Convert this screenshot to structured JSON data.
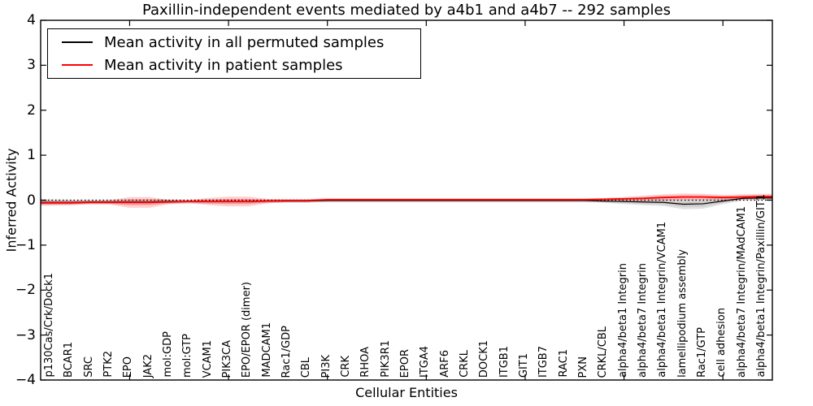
{
  "chart_data": {
    "type": "line",
    "title": "Paxillin-independent events mediated by a4b1 and a4b7 -- 292 samples",
    "xlabel": "Cellular Entities",
    "ylabel": "Inferred Activity",
    "ylim": [
      -4,
      4
    ],
    "grid": false,
    "zero_reference_line": {
      "value": 0,
      "style": "dotted",
      "color": "#000000"
    },
    "y_ticks": [
      4,
      3,
      2,
      1,
      0,
      -1,
      -2,
      -3,
      -4
    ],
    "y_tick_labels": [
      "4",
      "3",
      "2",
      "1",
      "0",
      "−1",
      "−2",
      "−3",
      "−4"
    ],
    "x_major_tick_indices": [
      4,
      9,
      14,
      19,
      24,
      29,
      34
    ],
    "legend_position": "upper left",
    "categories": [
      "p130Cas/Crk/Dock1",
      "BCAR1",
      "SRC",
      "PTK2",
      "EPO",
      "JAK2",
      "mol:GDP",
      "mol:GTP",
      "VCAM1",
      "PIK3CA",
      "EPO/EPOR (dimer)",
      "MADCAM1",
      "Rac1/GDP",
      "CBL",
      "PI3K",
      "CRK",
      "RHOA",
      "PIK3R1",
      "EPOR",
      "ITGA4",
      "ARF6",
      "CRKL",
      "DOCK1",
      "ITGB1",
      "GIT1",
      "ITGB7",
      "RAC1",
      "PXN",
      "CRKL/CBL",
      "alpha4/beta1 Integrin",
      "alpha4/beta7 Integrin",
      "alpha4/beta1 Integrin/VCAM1",
      "lamellipodium assembly",
      "Rac1/GTP",
      "cell adhesion",
      "alpha4/beta7 Integrin/MAdCAM1",
      "alpha4/beta1 Integrin/Paxillin/GIT1"
    ],
    "series": [
      {
        "name": "Mean activity in all permuted samples",
        "color": "#000000",
        "line_width": 1.2,
        "band_color": "#999999",
        "band_alpha": 0.3,
        "values": [
          -0.05,
          -0.05,
          -0.04,
          -0.04,
          -0.04,
          -0.04,
          -0.03,
          -0.03,
          -0.03,
          -0.03,
          -0.03,
          -0.02,
          -0.02,
          -0.02,
          -0.01,
          -0.01,
          -0.01,
          -0.01,
          -0.01,
          -0.01,
          -0.01,
          -0.01,
          -0.01,
          -0.01,
          -0.01,
          -0.01,
          -0.01,
          -0.01,
          -0.02,
          -0.03,
          -0.04,
          -0.05,
          -0.09,
          -0.08,
          -0.02,
          0.04,
          0.05
        ],
        "band_std": [
          0.07,
          0.06,
          0.05,
          0.05,
          0.06,
          0.06,
          0.05,
          0.04,
          0.05,
          0.05,
          0.05,
          0.04,
          0.04,
          0.04,
          0.04,
          0.04,
          0.04,
          0.04,
          0.04,
          0.04,
          0.04,
          0.04,
          0.04,
          0.04,
          0.04,
          0.04,
          0.04,
          0.04,
          0.04,
          0.06,
          0.07,
          0.08,
          0.11,
          0.11,
          0.07,
          0.05,
          0.05
        ]
      },
      {
        "name": "Mean activity in patient samples",
        "color": "#ff0000",
        "line_width": 1.8,
        "band_color": "#ff0000",
        "band_alpha": 0.18,
        "values": [
          -0.06,
          -0.06,
          -0.05,
          -0.05,
          -0.05,
          -0.05,
          -0.04,
          -0.03,
          -0.03,
          -0.03,
          -0.03,
          -0.02,
          -0.01,
          -0.01,
          0.01,
          0.01,
          0.01,
          0.01,
          0.01,
          0.01,
          0.01,
          0.01,
          0.01,
          0.01,
          0.01,
          0.01,
          0.01,
          0.01,
          0.02,
          0.03,
          0.04,
          0.06,
          0.07,
          0.07,
          0.06,
          0.07,
          0.08
        ],
        "band_std": [
          0.05,
          0.05,
          0.04,
          0.05,
          0.12,
          0.12,
          0.05,
          0.04,
          0.08,
          0.11,
          0.11,
          0.05,
          0.03,
          0.03,
          0.03,
          0.03,
          0.03,
          0.03,
          0.03,
          0.03,
          0.03,
          0.03,
          0.03,
          0.03,
          0.03,
          0.03,
          0.03,
          0.03,
          0.03,
          0.04,
          0.06,
          0.07,
          0.08,
          0.07,
          0.06,
          0.06,
          0.06
        ]
      }
    ]
  },
  "legend": {
    "items": [
      {
        "label": "Mean activity in all permuted samples",
        "color": "#000000"
      },
      {
        "label": "Mean activity in patient samples",
        "color": "#ff0000"
      }
    ]
  }
}
